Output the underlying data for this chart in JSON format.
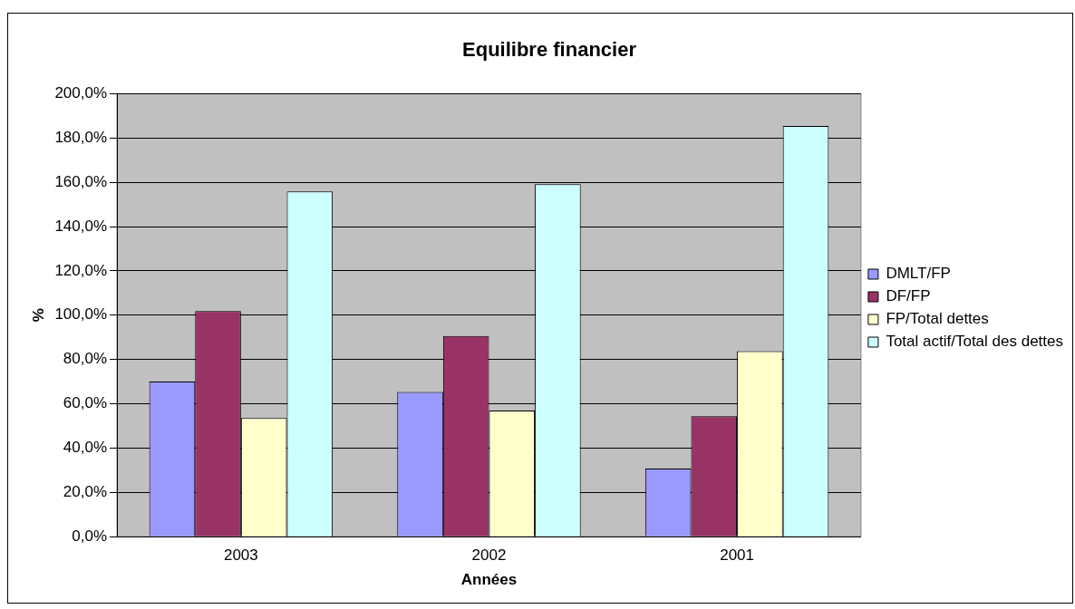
{
  "chart_data": {
    "type": "bar",
    "title": "Equilibre financier",
    "xlabel": "Années",
    "ylabel": "%",
    "categories": [
      "2003",
      "2002",
      "2001"
    ],
    "series": [
      {
        "name": "DMLT/FP",
        "color": "#9999ff",
        "values": [
          70.0,
          65.3,
          30.8
        ]
      },
      {
        "name": "DF/FP",
        "color": "#993366",
        "values": [
          101.9,
          90.6,
          54.4
        ]
      },
      {
        "name": "FP/Total dettes",
        "color": "#ffffcc",
        "values": [
          53.6,
          57.0,
          83.8
        ]
      },
      {
        "name": "Total actif/Total des dettes",
        "color": "#ccffff",
        "values": [
          155.9,
          159.1,
          185.4
        ]
      }
    ],
    "ylim": [
      0,
      200
    ],
    "yticks": [
      {
        "value": 0,
        "label": "0,0%"
      },
      {
        "value": 20,
        "label": "20,0%"
      },
      {
        "value": 40,
        "label": "40,0%"
      },
      {
        "value": 60,
        "label": "60,0%"
      },
      {
        "value": 80,
        "label": "80,0%"
      },
      {
        "value": 100,
        "label": "100,0%"
      },
      {
        "value": 120,
        "label": "120,0%"
      },
      {
        "value": 140,
        "label": "140,0%"
      },
      {
        "value": 160,
        "label": "160,0%"
      },
      {
        "value": 180,
        "label": "180,0%"
      },
      {
        "value": 200,
        "label": "200,0%"
      }
    ],
    "grid": "y",
    "legend": "right"
  }
}
